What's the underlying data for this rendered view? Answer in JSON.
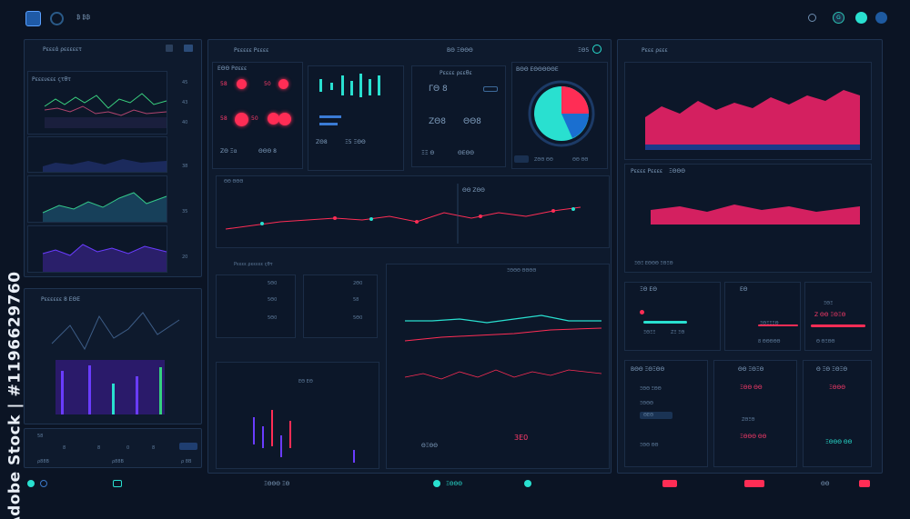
{
  "topbar": {
    "label_a": "₿ ₿₿",
    "icon_label": "G"
  },
  "left": {
    "title": "Ρεεεά ρεεεεετ",
    "chart_title": "Ρεεευεεε ςτθτ",
    "rows": [
      "45",
      "43",
      "40",
      "38",
      "35",
      "20"
    ],
    "area_label": "Ρεεεεεε 8 ΕΘΕ",
    "foot": [
      "58",
      "8",
      "8",
      "0",
      "8",
      "ρ 8Β"
    ],
    "foot_labels": [
      "ρ88Β",
      "ρ88Β"
    ]
  },
  "center": {
    "title": "Ρεεεεε Ρεεεε",
    "subtitle": "ΒΘ ΞΘΘΘ",
    "badge": "ΞΘ5",
    "gauge": {
      "title": "ΕΘΘ Ρσεεε",
      "a": "58",
      "b": "50",
      "c": "58",
      "d": "50"
    },
    "stats": {
      "head": "Ρεεεε ρεεθε",
      "v1": "ΖΘ8",
      "v2": "ΓΘ 8",
      "v3": "ΖΘ8",
      "v4": "ΘΘ8",
      "s1": "ΖΘ Ξα",
      "s2": "ΘΘΘ 8",
      "s3": "Ξ5 ΞΘΘ"
    },
    "bars_title": "ΒΘΘ ΕΘΘΘΘΘΕ",
    "bars_vals": [
      "ΞΞ Θ",
      "ΘΕΘΘ",
      "ΖΘΘ ΘΘ",
      "ΘΘ ΘΘ"
    ],
    "line_title": "ΘΘ ΘΘΘ",
    "line_badge": "ΘΘ ΖΘΘ",
    "table_title": "Ρεεεε ρεεεεε ςθτ",
    "table_rows": [
      "5Θ0",
      "5Θ0",
      "5Θ0",
      "2Θ0",
      "58",
      "5Θ0"
    ],
    "price_label": "ΞΘΘΘ ΘΘΘΘ",
    "mid_badge": "ΕΘ ΕΘ",
    "bottom": "ΘΞΘΘ",
    "bottom_big": "3Ε0"
  },
  "right": {
    "title": "Ρεεε ρεεε",
    "chart2_title": "Ρεεεε Ρεεεε",
    "chart2_sub": "ΞΘΘΘ",
    "legend": "ΞΘΞ ΕΘΘΘ ΞΘΞΘ",
    "p1": {
      "title": "ΞΘ ΕΘ",
      "rows": [
        "ΞΘΞΞ",
        "ΖΞ ΞΘ"
      ]
    },
    "p2": {
      "title": "ΕΘ",
      "rows": [
        "ΞΘΞΞΞΘ",
        "8 ΘΘΘΘΘ"
      ]
    },
    "p3": {
      "rows": [
        "ΞΘΞ",
        "Ζ ΘΘ ΞΘΞΘ",
        "Θ ΘΞΘΘ"
      ]
    },
    "q1": {
      "title": "ΒΘΘ ΞΘΞΘΘ",
      "rows": [
        "ΞΘΘ ΞΘΘ",
        "ΞΘΘΘ",
        "ΘΕΘ",
        "ΞΘΘ ΘΘ"
      ]
    },
    "q2": {
      "title": "ΘΘ ΞΘΞΘ",
      "rows": [
        "ΞΘΘ ΘΘ",
        "ΖΘΞΘ",
        "ΞΘΘΘ ΘΘ"
      ]
    },
    "q3": {
      "title": "Θ ΞΘ ΞΘΞΘ",
      "rows": [
        "ΞΘΘΘ",
        "ΞΘΘΘ ΘΘ"
      ]
    }
  },
  "footer": {
    "center": "ΞΘΘΘ ΞΘ",
    "mid": "ΞΘΘΘ",
    "right_val": "ΘΘ"
  },
  "watermark": "Adobe Stock | #1196629760",
  "colors": {
    "bg": "#0b1424",
    "panel": "#0e1a2d",
    "accent_red": "#ff2d55",
    "accent_teal": "#29e0d0",
    "accent_green": "#35d07f",
    "accent_purple": "#6a3cff"
  }
}
